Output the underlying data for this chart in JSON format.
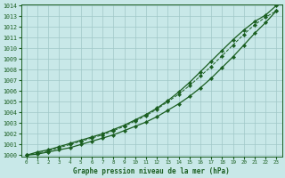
{
  "title": "Graphe pression niveau de la mer (hPa)",
  "bg_color": "#c8e8e8",
  "grid_color": "#a0c8c8",
  "line_color": "#1a5e20",
  "xlim": [
    0,
    23
  ],
  "ylim": [
    1000,
    1014
  ],
  "xticks": [
    0,
    1,
    2,
    3,
    4,
    5,
    6,
    7,
    8,
    9,
    10,
    11,
    12,
    13,
    14,
    15,
    16,
    17,
    18,
    19,
    20,
    21,
    22,
    23
  ],
  "yticks": [
    1000,
    1001,
    1002,
    1003,
    1004,
    1005,
    1006,
    1007,
    1008,
    1009,
    1010,
    1011,
    1012,
    1013,
    1014
  ],
  "x": [
    0,
    1,
    2,
    3,
    4,
    5,
    6,
    7,
    8,
    9,
    10,
    11,
    12,
    13,
    14,
    15,
    16,
    17,
    18,
    19,
    20,
    21,
    22,
    23
  ],
  "line_top": [
    1000.0,
    1000.3,
    1000.5,
    1000.8,
    1001.1,
    1001.4,
    1001.7,
    1002.0,
    1002.4,
    1002.8,
    1003.3,
    1003.8,
    1004.4,
    1005.1,
    1005.9,
    1006.8,
    1007.8,
    1008.8,
    1009.8,
    1010.8,
    1011.7,
    1012.5,
    1013.1,
    1014.0
  ],
  "line_mid": [
    1000.0,
    1000.2,
    1000.4,
    1000.7,
    1001.0,
    1001.3,
    1001.6,
    1001.9,
    1002.3,
    1002.7,
    1003.2,
    1003.7,
    1004.3,
    1005.0,
    1005.7,
    1006.5,
    1007.4,
    1008.3,
    1009.3,
    1010.3,
    1011.3,
    1012.2,
    1012.9,
    1013.5
  ],
  "line_bot": [
    1000.0,
    1000.1,
    1000.3,
    1000.5,
    1000.7,
    1001.0,
    1001.3,
    1001.6,
    1001.9,
    1002.3,
    1002.7,
    1003.1,
    1003.6,
    1004.2,
    1004.8,
    1005.5,
    1006.3,
    1007.2,
    1008.2,
    1009.2,
    1010.3,
    1011.4,
    1012.4,
    1013.5
  ]
}
